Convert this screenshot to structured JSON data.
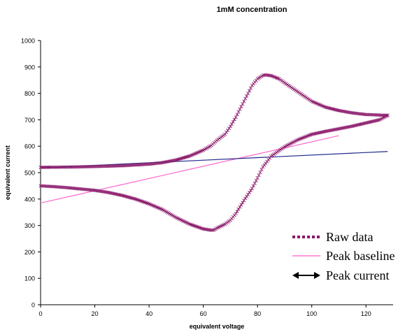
{
  "chart_data": {
    "type": "scatter",
    "title": "1mM concentration",
    "xlabel": "equivalent voltage",
    "ylabel": "equivalent current",
    "xlim": [
      0,
      130
    ],
    "ylim": [
      0,
      1000
    ],
    "x_ticks": [
      "0",
      "20",
      "40",
      "60",
      "80",
      "100",
      "120"
    ],
    "y_ticks": [
      "0",
      "100",
      "200",
      "300",
      "400",
      "500",
      "600",
      "700",
      "800",
      "900",
      "1000"
    ],
    "grid": false,
    "legend_position": "bottom-right",
    "series": [
      {
        "name": "Raw data",
        "style": "markers-x",
        "color": "#8B1A6B",
        "forward_sweep": {
          "x": [
            0,
            10,
            20,
            30,
            40,
            45,
            50,
            55,
            60,
            63,
            65,
            68,
            70,
            72,
            75,
            78,
            80,
            82,
            83,
            85,
            88,
            90,
            95,
            100,
            105,
            110,
            115,
            120,
            125,
            128
          ],
          "y": [
            520,
            521,
            523,
            526,
            532,
            538,
            548,
            563,
            585,
            603,
            622,
            645,
            675,
            710,
            770,
            830,
            855,
            868,
            870,
            867,
            855,
            840,
            805,
            770,
            748,
            735,
            726,
            720,
            718,
            717
          ]
        },
        "reverse_sweep": {
          "x": [
            128,
            125,
            120,
            115,
            110,
            105,
            100,
            95,
            90,
            85,
            82,
            80,
            78,
            75,
            72,
            70,
            68,
            65,
            64,
            63,
            60,
            55,
            50,
            45,
            40,
            35,
            30,
            25,
            20,
            15,
            10,
            5,
            0
          ],
          "y": [
            717,
            700,
            688,
            676,
            666,
            656,
            645,
            625,
            598,
            562,
            522,
            480,
            440,
            395,
            345,
            320,
            305,
            290,
            283,
            282,
            287,
            305,
            330,
            360,
            382,
            400,
            414,
            425,
            433,
            438,
            443,
            447,
            450
          ]
        }
      },
      {
        "name": "Peak baseline",
        "style": "line",
        "color": "#FF66CC",
        "x": [
          0,
          110
        ],
        "y": [
          385,
          640
        ]
      },
      {
        "name": "Peak current",
        "style": "line",
        "color": "#1F2A8C",
        "x": [
          0,
          128
        ],
        "y": [
          518,
          580
        ]
      }
    ]
  }
}
